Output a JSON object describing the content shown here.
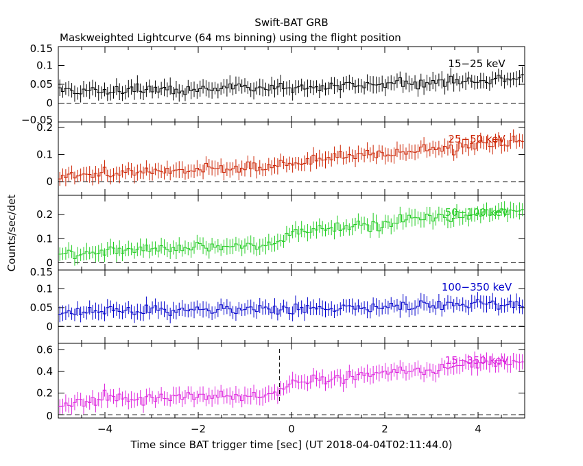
{
  "chart_data": {
    "type": "line",
    "title": "Swift-BAT GRB",
    "subtitle": "Maskweighted Lightcurve (64 ms binning) using the flight position",
    "xlabel": "Time since BAT trigger time [sec] (UT 2018-04-04T02:11:44.0)",
    "ylabel": "Counts/sec/det",
    "xlim": [
      -5,
      5
    ],
    "x_ticks": [
      "−4",
      "−2",
      "0",
      "2",
      "4"
    ],
    "x_tick_values": [
      -4,
      -2,
      0,
      2,
      4
    ],
    "bin_width": 0.064,
    "trigger_marker_x": -0.256,
    "panels": [
      {
        "name": "15−25 keV",
        "color": "#000000",
        "ylim": [
          -0.05,
          0.15
        ],
        "y_ticks": [
          -0.05,
          0,
          0.05,
          0.1,
          0.15
        ],
        "y_tick_labels": [
          "−0.05",
          "0",
          "0.05",
          "0.1",
          "0.15"
        ],
        "trend": [
          [
            -5,
            0.03
          ],
          [
            0,
            0.04
          ],
          [
            5,
            0.065
          ]
        ]
      },
      {
        "name": "25−50 keV",
        "color": "#cc2200",
        "ylim": [
          -0.05,
          0.22
        ],
        "y_ticks": [
          0,
          0.1,
          0.2
        ],
        "y_tick_labels": [
          "0",
          "0.1",
          "0.2"
        ],
        "trend": [
          [
            -5,
            0.02
          ],
          [
            -0.3,
            0.06
          ],
          [
            0,
            0.075
          ],
          [
            5,
            0.15
          ]
        ]
      },
      {
        "name": "50−100 keV",
        "color": "#22cc22",
        "ylim": [
          -0.03,
          0.28
        ],
        "y_ticks": [
          0,
          0.1,
          0.2
        ],
        "y_tick_labels": [
          "0",
          "0.1",
          "0.2"
        ],
        "trend": [
          [
            -5,
            0.03
          ],
          [
            -4,
            0.05
          ],
          [
            -0.3,
            0.08
          ],
          [
            0,
            0.13
          ],
          [
            5,
            0.22
          ]
        ]
      },
      {
        "name": "100−350 keV",
        "color": "#0000cc",
        "ylim": [
          -0.045,
          0.15
        ],
        "y_ticks": [
          0,
          0.05,
          0.1,
          0.15
        ],
        "y_tick_labels": [
          "0",
          "0.05",
          "0.1",
          "0.15"
        ],
        "trend": [
          [
            -5,
            0.04
          ],
          [
            0,
            0.045
          ],
          [
            5,
            0.06
          ]
        ]
      },
      {
        "name": "15−350 keV",
        "color": "#dd22dd",
        "ylim": [
          -0.03,
          0.66
        ],
        "y_ticks": [
          0,
          0.2,
          0.4,
          0.6
        ],
        "y_tick_labels": [
          "0",
          "0.2",
          "0.4",
          "0.6"
        ],
        "trend": [
          [
            -5,
            0.1
          ],
          [
            -4,
            0.15
          ],
          [
            -0.3,
            0.19
          ],
          [
            0,
            0.3
          ],
          [
            5,
            0.5
          ]
        ]
      }
    ]
  }
}
